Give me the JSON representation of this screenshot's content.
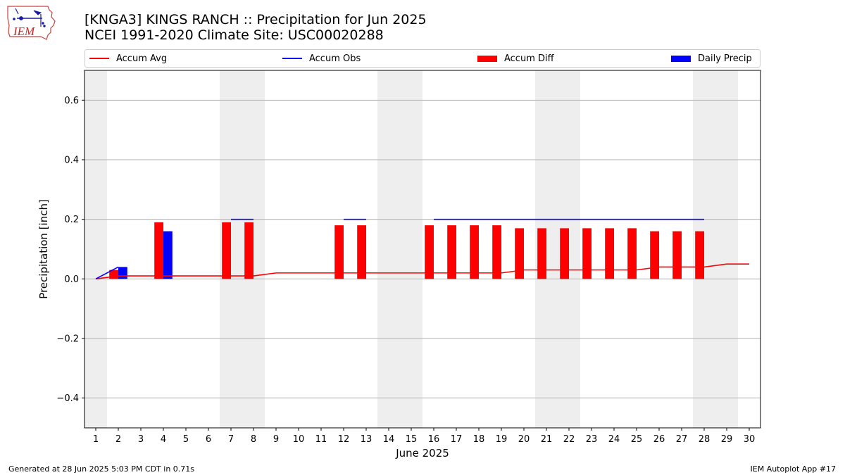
{
  "logo": {
    "text": "IEM"
  },
  "header": {
    "title_line1": "[KNGA3] KINGS RANCH :: Precipitation for Jun 2025",
    "title_line2": "NCEI 1991-2020 Climate Site: USC00020288"
  },
  "legend": {
    "items": [
      {
        "label": "Accum Avg",
        "kind": "line",
        "color": "#ff0000"
      },
      {
        "label": "Accum Obs",
        "kind": "line",
        "color": "#0000ff"
      },
      {
        "label": "Accum Diff",
        "kind": "box",
        "color": "#ff0000"
      },
      {
        "label": "Daily Precip",
        "kind": "box",
        "color": "#0000ff"
      }
    ]
  },
  "footer": {
    "left": "Generated at 28 Jun 2025 5:03 PM CDT in 0.71s",
    "right": "IEM Autoplot App #17"
  },
  "chart_data": {
    "type": "bar",
    "xlabel": "June 2025",
    "ylabel": "Precipitation [inch]",
    "xlim": [
      0.5,
      30.5
    ],
    "ylim": [
      -0.5,
      0.7
    ],
    "yticks": [
      -0.4,
      -0.2,
      0.0,
      0.2,
      0.4,
      0.6
    ],
    "ytick_labels": [
      "−0.4",
      "−0.2",
      "0.0",
      "0.2",
      "0.4",
      "0.6"
    ],
    "x": [
      1,
      2,
      3,
      4,
      5,
      6,
      7,
      8,
      9,
      10,
      11,
      12,
      13,
      14,
      15,
      16,
      17,
      18,
      19,
      20,
      21,
      22,
      23,
      24,
      25,
      26,
      27,
      28,
      29,
      30
    ],
    "grid": "horizontal",
    "weekend_shading": [
      [
        0.5,
        1.5
      ],
      [
        6.5,
        8.5
      ],
      [
        13.5,
        15.5
      ],
      [
        20.5,
        22.5
      ],
      [
        27.5,
        29.5
      ]
    ],
    "series": [
      {
        "name": "Accum Avg",
        "kind": "line",
        "color": "#ff0000",
        "x": [
          1,
          2,
          3,
          4,
          5,
          6,
          7,
          8,
          9,
          10,
          11,
          12,
          13,
          14,
          15,
          16,
          17,
          18,
          19,
          20,
          21,
          22,
          23,
          24,
          25,
          26,
          27,
          28,
          29,
          30
        ],
        "values": [
          0.0,
          0.01,
          0.01,
          0.01,
          0.01,
          0.01,
          0.01,
          0.01,
          0.02,
          0.02,
          0.02,
          0.02,
          0.02,
          0.02,
          0.02,
          0.02,
          0.02,
          0.02,
          0.02,
          0.03,
          0.03,
          0.03,
          0.03,
          0.03,
          0.03,
          0.04,
          0.04,
          0.04,
          0.05,
          0.05
        ]
      },
      {
        "name": "Accum Obs",
        "kind": "line",
        "color": "#0000ff",
        "segments": [
          {
            "x": [
              1,
              2
            ],
            "values": [
              0.0,
              0.04
            ]
          },
          {
            "x": [
              7,
              8
            ],
            "values": [
              0.2,
              0.2
            ]
          },
          {
            "x": [
              12,
              13
            ],
            "values": [
              0.2,
              0.2
            ]
          },
          {
            "x": [
              16,
              17,
              18,
              19,
              20,
              21,
              22,
              23,
              24,
              25,
              26,
              27,
              28
            ],
            "values": [
              0.2,
              0.2,
              0.2,
              0.2,
              0.2,
              0.2,
              0.2,
              0.2,
              0.2,
              0.2,
              0.2,
              0.2,
              0.2
            ]
          }
        ]
      },
      {
        "name": "Accum Diff",
        "kind": "bar",
        "color": "#ff0000",
        "x": [
          2,
          4,
          7,
          8,
          12,
          13,
          16,
          17,
          18,
          19,
          20,
          21,
          22,
          23,
          24,
          25,
          26,
          27,
          28
        ],
        "values": [
          0.03,
          0.19,
          0.19,
          0.19,
          0.18,
          0.18,
          0.18,
          0.18,
          0.18,
          0.18,
          0.17,
          0.17,
          0.17,
          0.17,
          0.17,
          0.17,
          0.16,
          0.16,
          0.16
        ]
      },
      {
        "name": "Daily Precip",
        "kind": "bar",
        "color": "#0000ff",
        "x": [
          2,
          4
        ],
        "values": [
          0.04,
          0.16
        ]
      }
    ]
  }
}
